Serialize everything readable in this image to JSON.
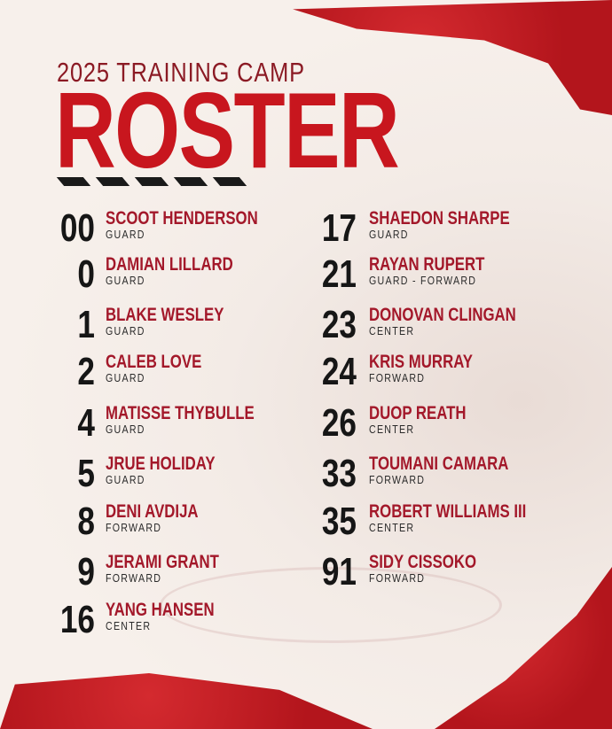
{
  "header": {
    "subtitle": "2025 TRAINING CAMP",
    "title": "ROSTER"
  },
  "colors": {
    "accent": "#c8161e",
    "name": "#a3182a",
    "background": "#f6eee8"
  },
  "left": [
    {
      "number": "00",
      "name": "SCOOT HENDERSON",
      "position": "GUARD"
    },
    {
      "number": "0",
      "name": "DAMIAN LILLARD",
      "position": "GUARD"
    },
    {
      "number": "1",
      "name": "BLAKE WESLEY",
      "position": "GUARD"
    },
    {
      "number": "2",
      "name": "CALEB LOVE",
      "position": "GUARD"
    },
    {
      "number": "4",
      "name": "MATISSE THYBULLE",
      "position": "GUARD"
    },
    {
      "number": "5",
      "name": "JRUE HOLIDAY",
      "position": "GUARD"
    },
    {
      "number": "8",
      "name": "DENI AVDIJA",
      "position": "FORWARD"
    },
    {
      "number": "9",
      "name": "JERAMI GRANT",
      "position": "FORWARD"
    },
    {
      "number": "16",
      "name": "YANG HANSEN",
      "position": "CENTER"
    }
  ],
  "right": [
    {
      "number": "17",
      "name": "SHAEDON SHARPE",
      "position": "GUARD"
    },
    {
      "number": "21",
      "name": "RAYAN RUPERT",
      "position": "GUARD - FORWARD"
    },
    {
      "number": "23",
      "name": "DONOVAN CLINGAN",
      "position": "CENTER"
    },
    {
      "number": "24",
      "name": "KRIS MURRAY",
      "position": "FORWARD"
    },
    {
      "number": "26",
      "name": "DUOP REATH",
      "position": "CENTER"
    },
    {
      "number": "33",
      "name": "TOUMANI CAMARA",
      "position": "FORWARD"
    },
    {
      "number": "35",
      "name": "ROBERT WILLIAMS III",
      "position": "CENTER"
    },
    {
      "number": "91",
      "name": "SIDY CISSOKO",
      "position": "FORWARD"
    }
  ]
}
